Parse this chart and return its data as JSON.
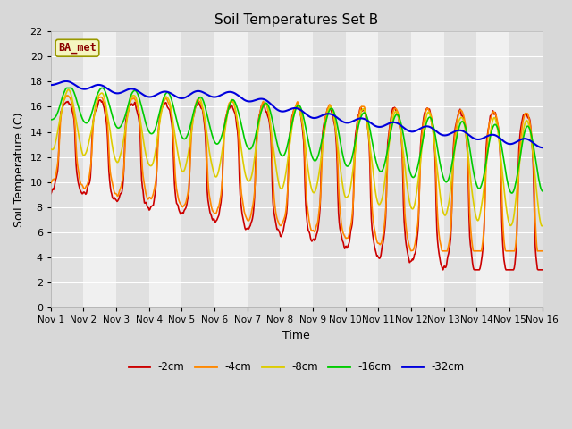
{
  "title": "Soil Temperatures Set B",
  "xlabel": "Time",
  "ylabel": "Soil Temperature (C)",
  "ylim": [
    0,
    22
  ],
  "yticks": [
    0,
    2,
    4,
    6,
    8,
    10,
    12,
    14,
    16,
    18,
    20,
    22
  ],
  "xtick_labels": [
    "Nov 1",
    "Nov 2",
    "Nov 3",
    "Nov 4",
    "Nov 5",
    "Nov 6",
    "Nov 7",
    "Nov 8",
    "Nov 9",
    "Nov 10",
    "Nov 11",
    "Nov 12",
    "Nov 13",
    "Nov 14",
    "Nov 15",
    "Nov 16"
  ],
  "legend_label": "BA_met",
  "colors": {
    "2cm": "#cc0000",
    "4cm": "#ff8800",
    "8cm": "#ddcc00",
    "16cm": "#00cc00",
    "32cm": "#0000dd"
  },
  "fig_bg": "#d8d8d8",
  "plot_bg_light": "#f0f0f0",
  "plot_bg_dark": "#e0e0e0",
  "grid_color": "#ffffff",
  "linewidth": 1.2,
  "figsize": [
    6.4,
    4.8
  ],
  "dpi": 100
}
